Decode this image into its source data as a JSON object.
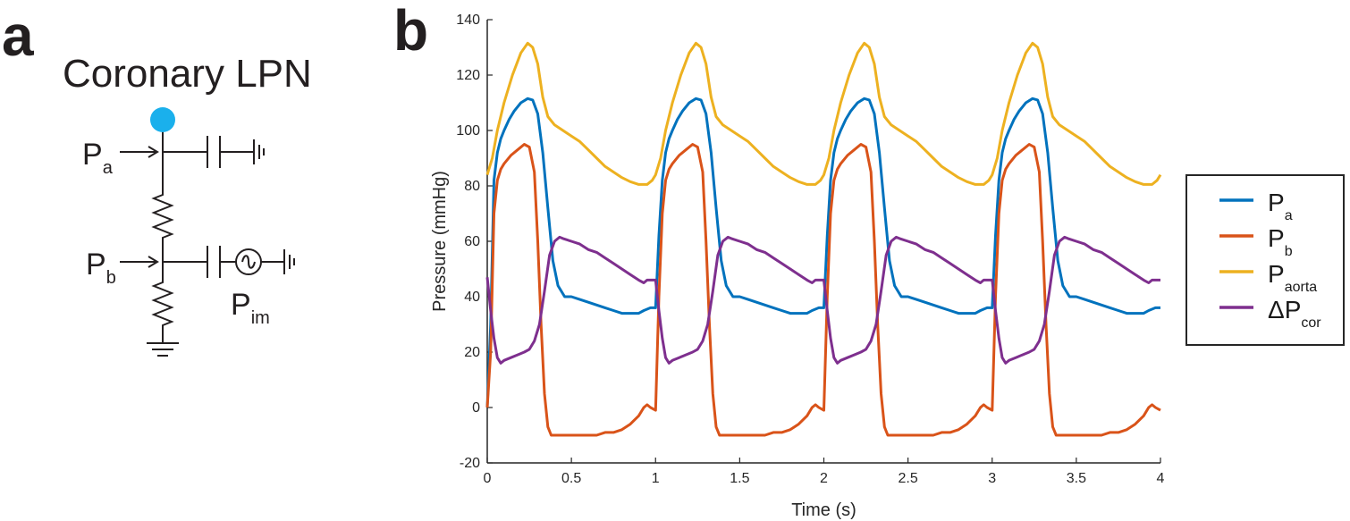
{
  "panel_a": {
    "letter": "a",
    "title": "Coronary LPN",
    "labels": {
      "pa_main": "P",
      "pa_sub": "a",
      "pb_main": "P",
      "pb_sub": "b",
      "pim_main": "P",
      "pim_sub": "im"
    },
    "node_color": "#1ab0ec"
  },
  "panel_b": {
    "letter": "b"
  },
  "chart_data": {
    "type": "line",
    "xlabel": "Time (s)",
    "ylabel": "Pressure (mmHg)",
    "xlim": [
      0,
      4
    ],
    "ylim": [
      -20,
      140
    ],
    "xticks": [
      0,
      0.5,
      1,
      1.5,
      2,
      2.5,
      3,
      3.5,
      4
    ],
    "yticks": [
      -20,
      0,
      20,
      40,
      60,
      80,
      100,
      120,
      140
    ],
    "period": 1,
    "legend_position": "right",
    "series": [
      {
        "name": "P",
        "sub": "a",
        "color": "#0072bd",
        "cycle_t": [
          0,
          0.02,
          0.04,
          0.06,
          0.08,
          0.1,
          0.13,
          0.16,
          0.2,
          0.24,
          0.27,
          0.3,
          0.33,
          0.36,
          0.39,
          0.42,
          0.46,
          0.5,
          0.55,
          0.6,
          0.65,
          0.7,
          0.75,
          0.8,
          0.85,
          0.9,
          0.93,
          0.97,
          1.0
        ],
        "cycle_v": [
          36,
          62,
          82,
          92,
          97,
          100,
          104,
          107,
          110,
          111.5,
          111,
          106,
          92,
          72,
          53,
          44,
          40,
          40,
          39,
          38,
          37,
          36,
          35,
          34,
          34,
          34,
          35,
          36,
          36
        ],
        "start": {
          "t": [
            0,
            0.02
          ],
          "v": [
            0,
            30
          ]
        }
      },
      {
        "name": "P",
        "sub": "b",
        "color": "#d95319",
        "cycle_t": [
          0,
          0.02,
          0.04,
          0.06,
          0.08,
          0.1,
          0.14,
          0.18,
          0.22,
          0.25,
          0.28,
          0.3,
          0.32,
          0.34,
          0.36,
          0.38,
          0.41,
          0.45,
          0.5,
          0.55,
          0.6,
          0.65,
          0.7,
          0.75,
          0.8,
          0.85,
          0.9,
          0.93,
          0.95,
          0.97,
          1.0
        ],
        "cycle_v": [
          -1,
          40,
          70,
          82,
          86,
          88,
          91,
          93,
          95,
          94,
          85,
          60,
          30,
          5,
          -7,
          -10,
          -10,
          -10,
          -10,
          -10,
          -10,
          -10,
          -9,
          -9,
          -8,
          -6,
          -3,
          0,
          1,
          0,
          -1
        ],
        "start": {
          "t": [
            0,
            0.02
          ],
          "v": [
            0,
            20
          ]
        }
      },
      {
        "name": "P",
        "sub": "aorta",
        "color": "#edb120",
        "cycle_t": [
          0,
          0.03,
          0.06,
          0.1,
          0.15,
          0.2,
          0.24,
          0.27,
          0.3,
          0.33,
          0.36,
          0.4,
          0.45,
          0.5,
          0.55,
          0.6,
          0.65,
          0.7,
          0.75,
          0.8,
          0.85,
          0.9,
          0.95,
          0.98,
          1.0
        ],
        "cycle_v": [
          82,
          90,
          100,
          110,
          120,
          128,
          131.5,
          130,
          124,
          112,
          105,
          102,
          100,
          98,
          96,
          93,
          90,
          87,
          85,
          83,
          81.5,
          80.5,
          80.5,
          82,
          84
        ],
        "start": {
          "t": [
            0
          ],
          "v": [
            84
          ]
        }
      },
      {
        "name": "ΔP",
        "sub": "cor",
        "color": "#7e2f8e",
        "cycle_t": [
          0,
          0.02,
          0.04,
          0.06,
          0.08,
          0.1,
          0.14,
          0.18,
          0.22,
          0.25,
          0.28,
          0.31,
          0.34,
          0.37,
          0.4,
          0.43,
          0.45,
          0.5,
          0.55,
          0.6,
          0.65,
          0.7,
          0.75,
          0.8,
          0.85,
          0.9,
          0.93,
          0.95,
          0.97,
          1.0
        ],
        "cycle_v": [
          46,
          35,
          25,
          18,
          16,
          17,
          18,
          19,
          20,
          21,
          24,
          30,
          42,
          55,
          60,
          61.5,
          61,
          60,
          59,
          57,
          56,
          54,
          52,
          50,
          48,
          46,
          45,
          46,
          46,
          46
        ],
        "start": {
          "t": [
            0
          ],
          "v": [
            47
          ]
        }
      }
    ]
  }
}
